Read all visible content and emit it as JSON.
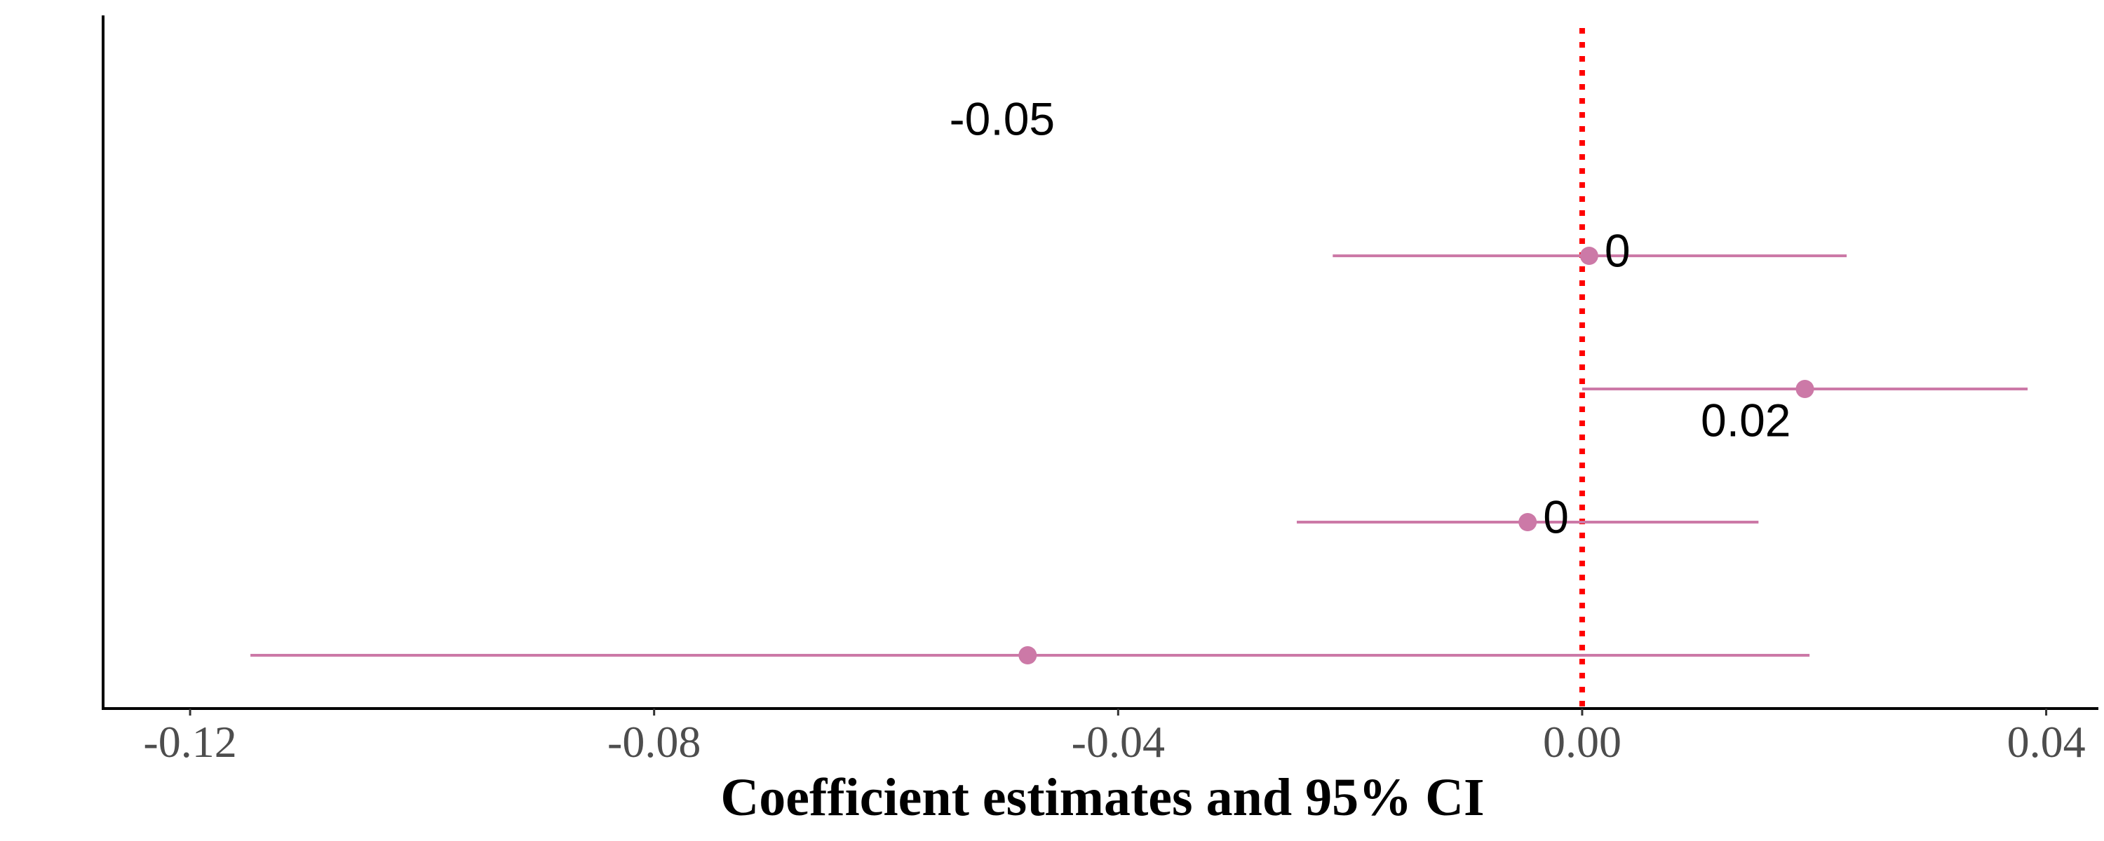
{
  "chart_data": {
    "type": "scatter",
    "subtype": "coefficient-plot",
    "title": "",
    "xlabel": "Coefficient estimates and 95% CI",
    "ylabel": "",
    "xlim": [
      -0.1275,
      0.0445
    ],
    "x_ticks": [
      -0.12,
      -0.08,
      -0.04,
      0.0,
      0.04
    ],
    "x_tick_labels": [
      "-0.12",
      "-0.08",
      "-0.04",
      "0.00",
      "0.04"
    ],
    "y_categories": 5,
    "reference_line": {
      "x": 0,
      "style": "dotted",
      "color": "#ff0000"
    },
    "grid": false,
    "point_color": "#cc79a7",
    "points": [
      {
        "row": 5,
        "estimate": null,
        "ci_low": null,
        "ci_high": null,
        "label": "-0.05"
      },
      {
        "row": 4,
        "estimate": 0.0006,
        "ci_low": -0.0215,
        "ci_high": 0.0228,
        "label": "0"
      },
      {
        "row": 3,
        "estimate": 0.0192,
        "ci_low": 0.0,
        "ci_high": 0.0384,
        "label": "0.02"
      },
      {
        "row": 2,
        "estimate": -0.0047,
        "ci_low": -0.0246,
        "ci_high": 0.0152,
        "label": "0"
      },
      {
        "row": 1,
        "estimate": -0.0478,
        "ci_low": -0.1148,
        "ci_high": 0.0196,
        "label": ""
      }
    ]
  }
}
